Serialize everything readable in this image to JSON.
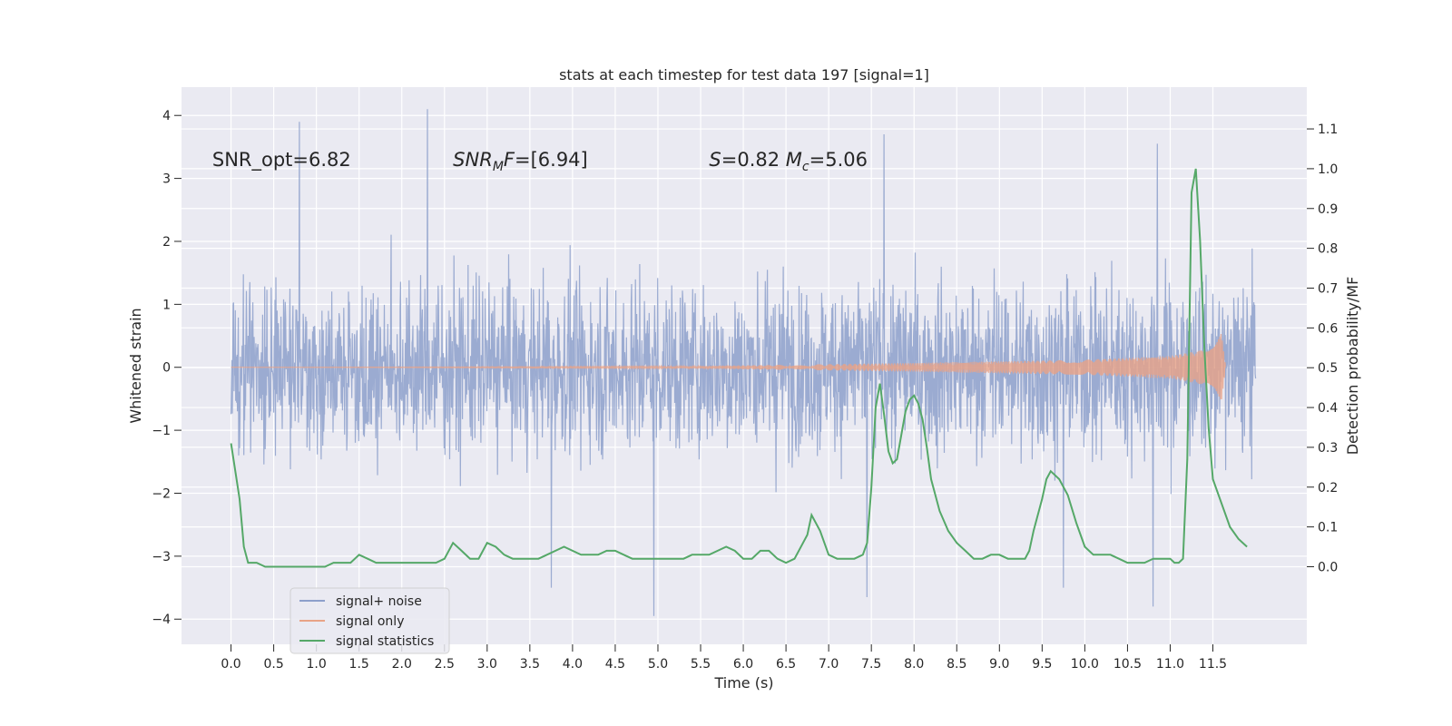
{
  "chart_data": {
    "type": "line",
    "title": "stats at each timestep for test data 197 [signal=1]",
    "xlabel": "Time (s)",
    "ylabel_left": "Whitened strain",
    "ylabel_right": "Detection probability/MF",
    "xlim": [
      -0.58,
      12.6
    ],
    "ylim_left": [
      -4.4,
      4.45
    ],
    "ylim_right": [
      -0.195,
      1.205
    ],
    "xticks": [
      0.0,
      0.5,
      1.0,
      1.5,
      2.0,
      2.5,
      3.0,
      3.5,
      4.0,
      4.5,
      5.0,
      5.5,
      6.0,
      6.5,
      7.0,
      7.5,
      8.0,
      8.5,
      9.0,
      9.5,
      10.0,
      10.5,
      11.0,
      11.5
    ],
    "xtick_labels": [
      "0.0",
      "0.5",
      "1.0",
      "1.5",
      "2.0",
      "2.5",
      "3.0",
      "3.5",
      "4.0",
      "4.5",
      "5.0",
      "5.5",
      "6.0",
      "6.5",
      "7.0",
      "7.5",
      "8.0",
      "8.5",
      "9.0",
      "9.5",
      "10.0",
      "10.5",
      "11.0",
      "11.5"
    ],
    "yticks_left": [
      -4,
      -3,
      -2,
      -1,
      0,
      1,
      2,
      3,
      4
    ],
    "ytick_labels_left": [
      "−4",
      "−3",
      "−2",
      "−1",
      "0",
      "1",
      "2",
      "3",
      "4"
    ],
    "yticks_right": [
      0.0,
      0.1,
      0.2,
      0.3,
      0.4,
      0.5,
      0.6,
      0.7,
      0.8,
      0.9,
      1.0,
      1.1
    ],
    "ytick_labels_right": [
      "0.0",
      "0.1",
      "0.2",
      "0.3",
      "0.4",
      "0.5",
      "0.6",
      "0.7",
      "0.8",
      "0.9",
      "1.0",
      "1.1"
    ],
    "grid": true,
    "legend_position": "lower-left",
    "annotations": [
      {
        "text": "SNR_opt=6.82",
        "x": -0.22,
        "y": 3.3
      },
      {
        "text": "SNR_MF=[6.94]",
        "x": 2.6,
        "y": 3.3
      },
      {
        "text": "S=0.82   M_c=5.06",
        "x": 5.6,
        "y": 3.3
      }
    ],
    "series": [
      {
        "name": "signal+ noise",
        "color": "#8da0cb",
        "type": "noise_band",
        "x_range": [
          0.0,
          12.0
        ],
        "approx_abs_max": 4.1,
        "notable_peaks": [
          {
            "t": 0.8,
            "v": 3.9
          },
          {
            "t": 2.3,
            "v": 4.1
          },
          {
            "t": 7.65,
            "v": 3.7
          },
          {
            "t": 10.85,
            "v": 3.55
          },
          {
            "t": 4.95,
            "v": -3.95
          },
          {
            "t": 10.8,
            "v": -3.8
          },
          {
            "t": 7.45,
            "v": -3.65
          },
          {
            "t": 3.75,
            "v": -3.5
          },
          {
            "t": 9.75,
            "v": -3.5
          }
        ]
      },
      {
        "name": "signal only",
        "color": "#e8a387",
        "type": "chirp",
        "x_range": [
          0.0,
          11.65
        ],
        "envelope": [
          [
            0.0,
            0.0
          ],
          [
            5.0,
            0.01
          ],
          [
            8.0,
            0.07
          ],
          [
            10.0,
            0.12
          ],
          [
            11.0,
            0.18
          ],
          [
            11.4,
            0.28
          ],
          [
            11.6,
            0.55
          ],
          [
            11.65,
            0.0
          ]
        ]
      },
      {
        "name": "signal statistics",
        "color": "#55a868",
        "axis": "right",
        "x": [
          0.0,
          0.1,
          0.15,
          0.2,
          0.3,
          0.4,
          0.5,
          0.6,
          0.7,
          0.8,
          0.9,
          1.0,
          1.1,
          1.2,
          1.3,
          1.4,
          1.5,
          1.6,
          1.7,
          1.8,
          1.9,
          2.0,
          2.1,
          2.2,
          2.3,
          2.4,
          2.5,
          2.6,
          2.7,
          2.8,
          2.9,
          3.0,
          3.1,
          3.2,
          3.3,
          3.4,
          3.5,
          3.6,
          3.7,
          3.8,
          3.9,
          4.0,
          4.1,
          4.2,
          4.3,
          4.4,
          4.5,
          4.6,
          4.7,
          4.8,
          4.9,
          5.0,
          5.1,
          5.2,
          5.3,
          5.4,
          5.5,
          5.6,
          5.7,
          5.8,
          5.9,
          6.0,
          6.1,
          6.2,
          6.3,
          6.4,
          6.5,
          6.6,
          6.7,
          6.75,
          6.8,
          6.9,
          7.0,
          7.1,
          7.2,
          7.3,
          7.4,
          7.45,
          7.5,
          7.55,
          7.6,
          7.65,
          7.7,
          7.75,
          7.8,
          7.85,
          7.9,
          7.95,
          8.0,
          8.05,
          8.1,
          8.15,
          8.2,
          8.3,
          8.4,
          8.5,
          8.6,
          8.7,
          8.8,
          8.9,
          9.0,
          9.1,
          9.2,
          9.3,
          9.35,
          9.4,
          9.5,
          9.55,
          9.6,
          9.7,
          9.8,
          9.9,
          10.0,
          10.1,
          10.2,
          10.3,
          10.4,
          10.5,
          10.6,
          10.7,
          10.8,
          10.9,
          11.0,
          11.05,
          11.1,
          11.15,
          11.2,
          11.25,
          11.3,
          11.35,
          11.4,
          11.45,
          11.5,
          11.6,
          11.7,
          11.8,
          11.9
        ],
        "y": [
          0.31,
          0.17,
          0.05,
          0.01,
          0.01,
          0.0,
          0.0,
          0.0,
          0.0,
          0.0,
          0.0,
          0.0,
          0.0,
          0.01,
          0.01,
          0.01,
          0.03,
          0.02,
          0.01,
          0.01,
          0.01,
          0.01,
          0.01,
          0.01,
          0.01,
          0.01,
          0.02,
          0.06,
          0.04,
          0.02,
          0.02,
          0.06,
          0.05,
          0.03,
          0.02,
          0.02,
          0.02,
          0.02,
          0.03,
          0.04,
          0.05,
          0.04,
          0.03,
          0.03,
          0.03,
          0.04,
          0.04,
          0.03,
          0.02,
          0.02,
          0.02,
          0.02,
          0.02,
          0.02,
          0.02,
          0.03,
          0.03,
          0.03,
          0.04,
          0.05,
          0.04,
          0.02,
          0.02,
          0.04,
          0.04,
          0.02,
          0.01,
          0.02,
          0.06,
          0.08,
          0.13,
          0.09,
          0.03,
          0.02,
          0.02,
          0.02,
          0.03,
          0.06,
          0.2,
          0.4,
          0.46,
          0.38,
          0.29,
          0.26,
          0.27,
          0.33,
          0.39,
          0.42,
          0.43,
          0.41,
          0.37,
          0.3,
          0.22,
          0.14,
          0.09,
          0.06,
          0.04,
          0.02,
          0.02,
          0.03,
          0.03,
          0.02,
          0.02,
          0.02,
          0.04,
          0.09,
          0.17,
          0.22,
          0.24,
          0.22,
          0.18,
          0.11,
          0.05,
          0.03,
          0.03,
          0.03,
          0.02,
          0.01,
          0.01,
          0.01,
          0.02,
          0.02,
          0.02,
          0.01,
          0.01,
          0.02,
          0.27,
          0.94,
          1.0,
          0.82,
          0.55,
          0.35,
          0.22,
          0.16,
          0.1,
          0.07,
          0.05
        ]
      }
    ]
  }
}
